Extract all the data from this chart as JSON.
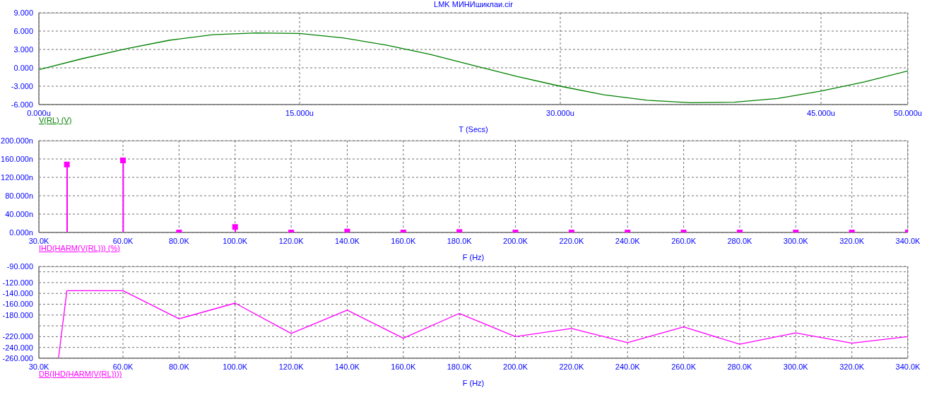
{
  "chart_data": [
    {
      "type": "line",
      "title": "LMK МИНИшиклаи.cir",
      "xlabel": "T (Secs)",
      "x": [
        0,
        2.5,
        5,
        7.5,
        10,
        12.5,
        15,
        17.5,
        20,
        22.5,
        25,
        27.5,
        30,
        32.5,
        35,
        37.5,
        40,
        42.5,
        45,
        47.5,
        50
      ],
      "series": [
        {
          "name": "V(RL) (V)",
          "color": "#008000",
          "values": [
            -0.3,
            1.5,
            3.1,
            4.5,
            5.4,
            5.7,
            5.6,
            4.9,
            3.7,
            2.2,
            0.4,
            -1.4,
            -3.0,
            -4.4,
            -5.3,
            -5.7,
            -5.6,
            -5.0,
            -3.8,
            -2.3,
            -0.5
          ]
        }
      ],
      "xlim": [
        0,
        50
      ],
      "xticks": [
        {
          "value": 0,
          "label": "0.000u"
        },
        {
          "value": 15,
          "label": "15.000u"
        },
        {
          "value": 30,
          "label": "30.000u"
        },
        {
          "value": 45,
          "label": "45.000u"
        },
        {
          "value": 50,
          "label": "50.000u"
        }
      ],
      "ylim": [
        -6,
        9
      ],
      "yticks": [
        {
          "value": -6,
          "label": "-6.000"
        },
        {
          "value": -3,
          "label": "-3.000"
        },
        {
          "value": 0,
          "label": "0.000"
        },
        {
          "value": 3,
          "label": "3.000"
        },
        {
          "value": 6,
          "label": "6.000"
        },
        {
          "value": 9,
          "label": "9.000"
        }
      ],
      "grid": true,
      "legend": "bottom left",
      "marker": "none"
    },
    {
      "type": "lollipop",
      "xlabel": "F (Hz)",
      "x": [
        40000,
        60000,
        80000,
        100000,
        120000,
        140000,
        160000,
        180000,
        200000,
        220000,
        240000,
        260000,
        280000,
        300000,
        320000,
        340000
      ],
      "series": [
        {
          "name": "IHD(HARM(V(RL))) (%)",
          "color": "#ff00ff",
          "values": [
            148,
            157,
            0,
            12,
            0,
            2,
            0,
            1,
            0,
            0,
            0,
            0,
            0,
            0,
            0,
            0
          ]
        }
      ],
      "xlim": [
        30000,
        340000
      ],
      "xticks": [
        {
          "value": 30000,
          "label": "30.0K"
        },
        {
          "value": 60000,
          "label": "60.0K"
        },
        {
          "value": 80000,
          "label": "80.0K"
        },
        {
          "value": 100000,
          "label": "100.0K"
        },
        {
          "value": 120000,
          "label": "120.0K"
        },
        {
          "value": 140000,
          "label": "140.0K"
        },
        {
          "value": 160000,
          "label": "160.0K"
        },
        {
          "value": 180000,
          "label": "180.0K"
        },
        {
          "value": 200000,
          "label": "200.0K"
        },
        {
          "value": 220000,
          "label": "220.0K"
        },
        {
          "value": 240000,
          "label": "240.0K"
        },
        {
          "value": 260000,
          "label": "260.0K"
        },
        {
          "value": 280000,
          "label": "280.0K"
        },
        {
          "value": 300000,
          "label": "300.0K"
        },
        {
          "value": 320000,
          "label": "320.0K"
        },
        {
          "value": 340000,
          "label": "340.0K"
        }
      ],
      "ylim": [
        0,
        200
      ],
      "yticks": [
        {
          "value": 0,
          "label": "0.000n"
        },
        {
          "value": 40,
          "label": "40.000n"
        },
        {
          "value": 80,
          "label": "80.000n"
        },
        {
          "value": 120,
          "label": "120.000n"
        },
        {
          "value": 160,
          "label": "160.000n"
        },
        {
          "value": 200,
          "label": "200.000n"
        }
      ],
      "grid": true,
      "legend": "bottom left",
      "marker": "square"
    },
    {
      "type": "line",
      "xlabel": "F (Hz)",
      "x": [
        37000,
        40000,
        60000,
        80000,
        100000,
        120000,
        140000,
        160000,
        180000,
        200000,
        220000,
        240000,
        260000,
        280000,
        300000,
        320000,
        340000
      ],
      "series": [
        {
          "name": "DB(IHD(HARM(V(RL))))",
          "color": "#ff00ff",
          "values": [
            -260,
            -135,
            -135,
            -187,
            -158,
            -214,
            -171,
            -223,
            -177,
            -220,
            -205,
            -231,
            -202,
            -234,
            -213,
            -232,
            -220
          ]
        }
      ],
      "xlim": [
        30000,
        340000
      ],
      "xticks": [
        {
          "value": 30000,
          "label": "30.0K"
        },
        {
          "value": 60000,
          "label": "60.0K"
        },
        {
          "value": 80000,
          "label": "80.0K"
        },
        {
          "value": 100000,
          "label": "100.0K"
        },
        {
          "value": 120000,
          "label": "120.0K"
        },
        {
          "value": 140000,
          "label": "140.0K"
        },
        {
          "value": 160000,
          "label": "160.0K"
        },
        {
          "value": 180000,
          "label": "180.0K"
        },
        {
          "value": 200000,
          "label": "200.0K"
        },
        {
          "value": 220000,
          "label": "220.0K"
        },
        {
          "value": 240000,
          "label": "240.0K"
        },
        {
          "value": 260000,
          "label": "260.0K"
        },
        {
          "value": 280000,
          "label": "280.0K"
        },
        {
          "value": 300000,
          "label": "300.0K"
        },
        {
          "value": 320000,
          "label": "320.0K"
        },
        {
          "value": 340000,
          "label": "340.0K"
        }
      ],
      "ylim": [
        -260,
        -90
      ],
      "yticks": [
        {
          "value": -260,
          "label": "-260.000"
        },
        {
          "value": -240,
          "label": "-240.000"
        },
        {
          "value": -220,
          "label": "-220.000"
        },
        {
          "value": -200,
          "label": null
        },
        {
          "value": -180,
          "label": "-180.000"
        },
        {
          "value": -160,
          "label": "-160.000"
        },
        {
          "value": -140,
          "label": "-140.000"
        },
        {
          "value": -120,
          "label": "-120.000"
        },
        {
          "value": -100,
          "label": null
        },
        {
          "value": -90,
          "label": "-90.000"
        }
      ],
      "grid": true,
      "legend": "bottom left",
      "marker": "none"
    }
  ]
}
